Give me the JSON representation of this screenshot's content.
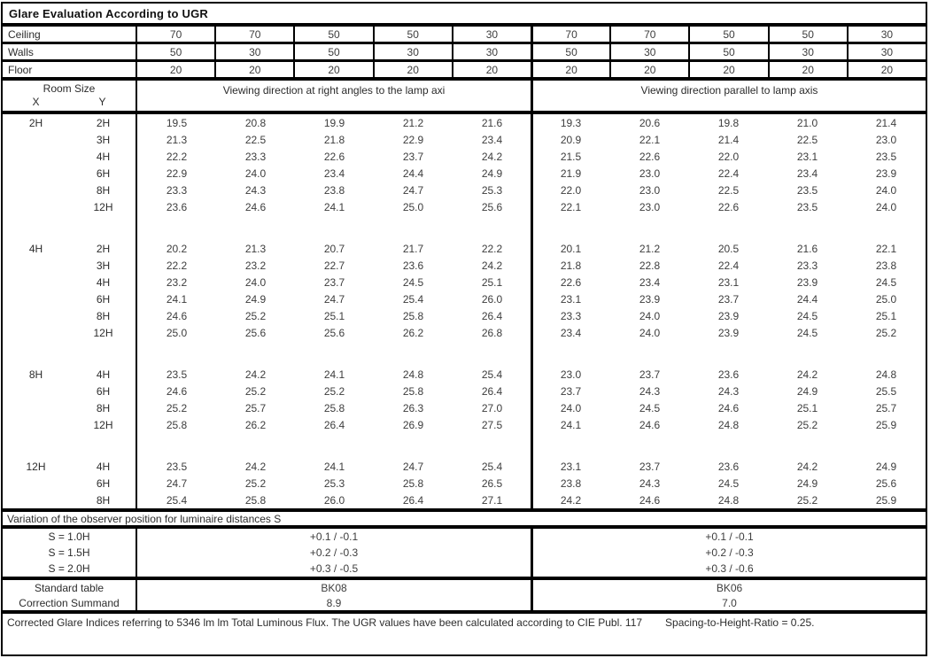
{
  "title": "Glare Evaluation According to UGR",
  "reflectances": {
    "rows": [
      {
        "label": "Ceiling",
        "values": [
          "70",
          "70",
          "50",
          "50",
          "30",
          "70",
          "70",
          "50",
          "50",
          "30"
        ]
      },
      {
        "label": "Walls",
        "values": [
          "50",
          "30",
          "50",
          "30",
          "30",
          "50",
          "30",
          "50",
          "30",
          "30"
        ]
      },
      {
        "label": "Floor",
        "values": [
          "20",
          "20",
          "20",
          "20",
          "20",
          "20",
          "20",
          "20",
          "20",
          "20"
        ]
      }
    ]
  },
  "header": {
    "room_size_label": "Room Size",
    "x_label": "X",
    "y_label": "Y",
    "left_viewing_label": "Viewing direction at right angles to the lamp axi",
    "right_viewing_label": "Viewing direction parallel to lamp axis"
  },
  "blocks": [
    {
      "x": "2H",
      "rows": [
        {
          "y": "2H",
          "left": [
            "19.5",
            "20.8",
            "19.9",
            "21.2",
            "21.6"
          ],
          "right": [
            "19.3",
            "20.6",
            "19.8",
            "21.0",
            "21.4"
          ]
        },
        {
          "y": "3H",
          "left": [
            "21.3",
            "22.5",
            "21.8",
            "22.9",
            "23.4"
          ],
          "right": [
            "20.9",
            "22.1",
            "21.4",
            "22.5",
            "23.0"
          ]
        },
        {
          "y": "4H",
          "left": [
            "22.2",
            "23.3",
            "22.6",
            "23.7",
            "24.2"
          ],
          "right": [
            "21.5",
            "22.6",
            "22.0",
            "23.1",
            "23.5"
          ]
        },
        {
          "y": "6H",
          "left": [
            "22.9",
            "24.0",
            "23.4",
            "24.4",
            "24.9"
          ],
          "right": [
            "21.9",
            "23.0",
            "22.4",
            "23.4",
            "23.9"
          ]
        },
        {
          "y": "8H",
          "left": [
            "23.3",
            "24.3",
            "23.8",
            "24.7",
            "25.3"
          ],
          "right": [
            "22.0",
            "23.0",
            "22.5",
            "23.5",
            "24.0"
          ]
        },
        {
          "y": "12H",
          "left": [
            "23.6",
            "24.6",
            "24.1",
            "25.0",
            "25.6"
          ],
          "right": [
            "22.1",
            "23.0",
            "22.6",
            "23.5",
            "24.0"
          ]
        }
      ]
    },
    {
      "x": "4H",
      "rows": [
        {
          "y": "2H",
          "left": [
            "20.2",
            "21.3",
            "20.7",
            "21.7",
            "22.2"
          ],
          "right": [
            "20.1",
            "21.2",
            "20.5",
            "21.6",
            "22.1"
          ]
        },
        {
          "y": "3H",
          "left": [
            "22.2",
            "23.2",
            "22.7",
            "23.6",
            "24.2"
          ],
          "right": [
            "21.8",
            "22.8",
            "22.4",
            "23.3",
            "23.8"
          ]
        },
        {
          "y": "4H",
          "left": [
            "23.2",
            "24.0",
            "23.7",
            "24.5",
            "25.1"
          ],
          "right": [
            "22.6",
            "23.4",
            "23.1",
            "23.9",
            "24.5"
          ]
        },
        {
          "y": "6H",
          "left": [
            "24.1",
            "24.9",
            "24.7",
            "25.4",
            "26.0"
          ],
          "right": [
            "23.1",
            "23.9",
            "23.7",
            "24.4",
            "25.0"
          ]
        },
        {
          "y": "8H",
          "left": [
            "24.6",
            "25.2",
            "25.1",
            "25.8",
            "26.4"
          ],
          "right": [
            "23.3",
            "24.0",
            "23.9",
            "24.5",
            "25.1"
          ]
        },
        {
          "y": "12H",
          "left": [
            "25.0",
            "25.6",
            "25.6",
            "26.2",
            "26.8"
          ],
          "right": [
            "23.4",
            "24.0",
            "23.9",
            "24.5",
            "25.2"
          ]
        }
      ]
    },
    {
      "x": "8H",
      "rows": [
        {
          "y": "4H",
          "left": [
            "23.5",
            "24.2",
            "24.1",
            "24.8",
            "25.4"
          ],
          "right": [
            "23.0",
            "23.7",
            "23.6",
            "24.2",
            "24.8"
          ]
        },
        {
          "y": "6H",
          "left": [
            "24.6",
            "25.2",
            "25.2",
            "25.8",
            "26.4"
          ],
          "right": [
            "23.7",
            "24.3",
            "24.3",
            "24.9",
            "25.5"
          ]
        },
        {
          "y": "8H",
          "left": [
            "25.2",
            "25.7",
            "25.8",
            "26.3",
            "27.0"
          ],
          "right": [
            "24.0",
            "24.5",
            "24.6",
            "25.1",
            "25.7"
          ]
        },
        {
          "y": "12H",
          "left": [
            "25.8",
            "26.2",
            "26.4",
            "26.9",
            "27.5"
          ],
          "right": [
            "24.1",
            "24.6",
            "24.8",
            "25.2",
            "25.9"
          ]
        }
      ]
    },
    {
      "x": "12H",
      "rows": [
        {
          "y": "4H",
          "left": [
            "23.5",
            "24.2",
            "24.1",
            "24.7",
            "25.4"
          ],
          "right": [
            "23.1",
            "23.7",
            "23.6",
            "24.2",
            "24.9"
          ]
        },
        {
          "y": "6H",
          "left": [
            "24.7",
            "25.2",
            "25.3",
            "25.8",
            "26.5"
          ],
          "right": [
            "23.8",
            "24.3",
            "24.5",
            "24.9",
            "25.6"
          ]
        },
        {
          "y": "8H",
          "left": [
            "25.4",
            "25.8",
            "26.0",
            "26.4",
            "27.1"
          ],
          "right": [
            "24.2",
            "24.6",
            "24.8",
            "25.2",
            "25.9"
          ]
        }
      ]
    }
  ],
  "variation": {
    "title": "Variation of the observer position for luminaire distances S",
    "rows": [
      {
        "label": "S = 1.0H",
        "left": "+0.1 / -0.1",
        "right": "+0.1 / -0.1"
      },
      {
        "label": "S = 1.5H",
        "left": "+0.2 / -0.3",
        "right": "+0.2 / -0.3"
      },
      {
        "label": "S = 2.0H",
        "left": "+0.3 / -0.5",
        "right": "+0.3 / -0.6"
      }
    ]
  },
  "summary": {
    "rows": [
      {
        "label": "Standard table",
        "left": "BK08",
        "right": "BK06"
      },
      {
        "label": "Correction Summand",
        "left": "8.9",
        "right": "7.0"
      }
    ]
  },
  "footer": {
    "left_text": "Corrected Glare Indices referring to 5346 lm lm Total Luminous Flux. The UGR values have been calculated according to CIE Publ. 117",
    "right_text": "Spacing-to-Height-Ratio = 0.25."
  }
}
